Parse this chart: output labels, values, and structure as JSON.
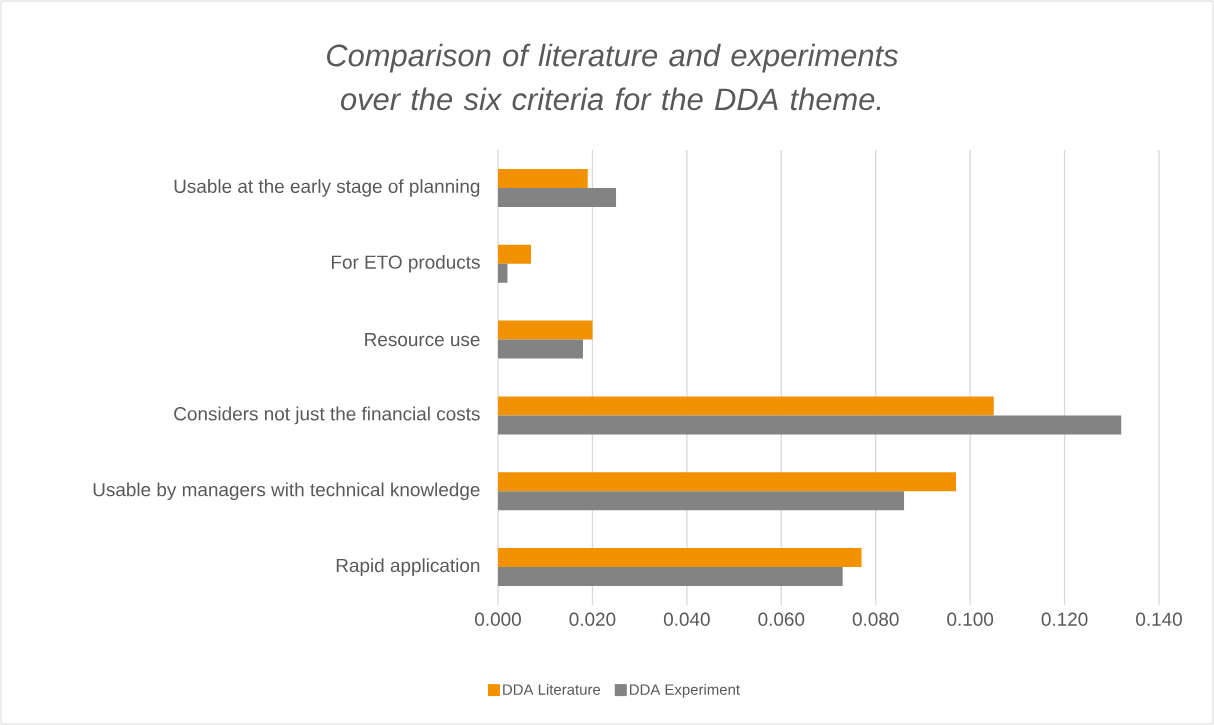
{
  "chart_data": {
    "type": "bar",
    "orientation": "horizontal",
    "title": "Comparison of literature and experiments over the six criteria for the DDA theme.",
    "categories": [
      "Usable at the early stage of planning",
      "For ETO products",
      "Resource use",
      "Considers not just the financial costs",
      "Usable by managers with technical knowledge",
      "Rapid application"
    ],
    "series": [
      {
        "name": "DDA Literature",
        "color": "#f39200",
        "values": [
          0.019,
          0.007,
          0.02,
          0.105,
          0.097,
          0.077
        ]
      },
      {
        "name": "DDA Experiment",
        "color": "#838383",
        "values": [
          0.025,
          0.002,
          0.018,
          0.132,
          0.086,
          0.073
        ]
      }
    ],
    "xlim": [
      0,
      0.14
    ],
    "xticks": [
      {
        "value": 0,
        "label": "0.000"
      },
      {
        "value": 0.02,
        "label": "0.020"
      },
      {
        "value": 0.04,
        "label": "0.040"
      },
      {
        "value": 0.06,
        "label": "0.060"
      },
      {
        "value": 0.08,
        "label": "0.080"
      },
      {
        "value": 0.1,
        "label": "0.100"
      },
      {
        "value": 0.12,
        "label": "0.120"
      },
      {
        "value": 0.14,
        "label": "0.140"
      }
    ],
    "grid": "x",
    "legend": "bottom"
  }
}
